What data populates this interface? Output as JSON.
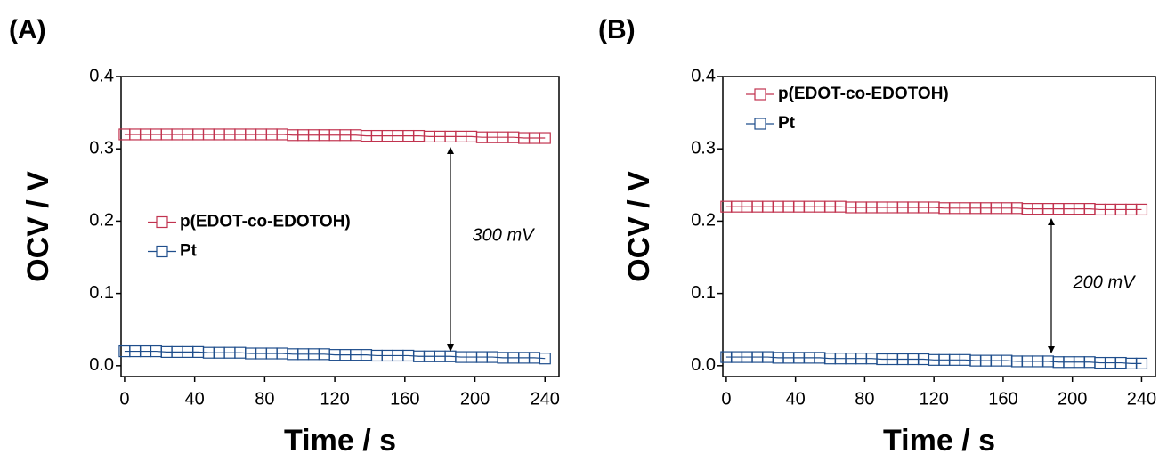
{
  "chart_data": [
    {
      "type": "line",
      "panel_label": "(A)",
      "x_label": "Time / s",
      "y_label": "OCV / V",
      "xlim": [
        -2,
        248
      ],
      "ylim": [
        -0.015,
        0.4
      ],
      "xticks": [
        0,
        40,
        80,
        120,
        160,
        200,
        240
      ],
      "yticks": [
        {
          "value": 0,
          "label": "0.0"
        },
        0.1,
        0.2,
        0.3,
        0.4
      ],
      "legend": "center left",
      "annotation": "300 mV",
      "x": [
        0,
        6,
        12,
        18,
        24,
        30,
        36,
        42,
        48,
        54,
        60,
        66,
        72,
        78,
        84,
        90,
        96,
        102,
        108,
        114,
        120,
        126,
        132,
        138,
        144,
        150,
        156,
        162,
        168,
        174,
        180,
        186,
        192,
        198,
        204,
        210,
        216,
        222,
        228,
        234,
        240
      ],
      "series": [
        {
          "name": "p(EDOT-co-EDOTOH)",
          "color": "#c1334f",
          "values": [
            0.32,
            0.32,
            0.32,
            0.32,
            0.32,
            0.32,
            0.32,
            0.32,
            0.32,
            0.32,
            0.32,
            0.32,
            0.32,
            0.32,
            0.32,
            0.32,
            0.319,
            0.319,
            0.319,
            0.319,
            0.319,
            0.319,
            0.319,
            0.318,
            0.318,
            0.318,
            0.318,
            0.318,
            0.318,
            0.317,
            0.317,
            0.317,
            0.317,
            0.317,
            0.316,
            0.316,
            0.316,
            0.316,
            0.315,
            0.315,
            0.315
          ]
        },
        {
          "name": "Pt",
          "color": "#1f4e8c",
          "values": [
            0.02,
            0.02,
            0.02,
            0.02,
            0.019,
            0.019,
            0.019,
            0.019,
            0.018,
            0.018,
            0.018,
            0.018,
            0.017,
            0.017,
            0.017,
            0.017,
            0.016,
            0.016,
            0.016,
            0.016,
            0.015,
            0.015,
            0.015,
            0.015,
            0.014,
            0.014,
            0.014,
            0.014,
            0.013,
            0.013,
            0.013,
            0.013,
            0.012,
            0.012,
            0.012,
            0.012,
            0.011,
            0.011,
            0.011,
            0.011,
            0.01
          ]
        }
      ]
    },
    {
      "type": "line",
      "panel_label": "(B)",
      "x_label": "Time / s",
      "y_label": "OCV / V",
      "xlim": [
        -2,
        248
      ],
      "ylim": [
        -0.015,
        0.4
      ],
      "xticks": [
        0,
        40,
        80,
        120,
        160,
        200,
        240
      ],
      "yticks": [
        {
          "value": 0,
          "label": "0.0"
        },
        0.1,
        0.2,
        0.3,
        0.4
      ],
      "legend": "upper left",
      "annotation": "200 mV",
      "x": [
        0,
        6,
        12,
        18,
        24,
        30,
        36,
        42,
        48,
        54,
        60,
        66,
        72,
        78,
        84,
        90,
        96,
        102,
        108,
        114,
        120,
        126,
        132,
        138,
        144,
        150,
        156,
        162,
        168,
        174,
        180,
        186,
        192,
        198,
        204,
        210,
        216,
        222,
        228,
        234,
        240
      ],
      "series": [
        {
          "name": "p(EDOT-co-EDOTOH)",
          "color": "#c1334f",
          "values": [
            0.22,
            0.22,
            0.22,
            0.22,
            0.22,
            0.22,
            0.22,
            0.22,
            0.22,
            0.22,
            0.22,
            0.22,
            0.219,
            0.219,
            0.219,
            0.219,
            0.219,
            0.219,
            0.219,
            0.219,
            0.219,
            0.218,
            0.218,
            0.218,
            0.218,
            0.218,
            0.218,
            0.218,
            0.218,
            0.217,
            0.217,
            0.217,
            0.217,
            0.217,
            0.217,
            0.217,
            0.216,
            0.216,
            0.216,
            0.216,
            0.216
          ]
        },
        {
          "name": "Pt",
          "color": "#1f4e8c",
          "values": [
            0.012,
            0.012,
            0.012,
            0.012,
            0.012,
            0.011,
            0.011,
            0.011,
            0.011,
            0.011,
            0.01,
            0.01,
            0.01,
            0.01,
            0.01,
            0.009,
            0.009,
            0.009,
            0.009,
            0.009,
            0.008,
            0.008,
            0.008,
            0.008,
            0.007,
            0.007,
            0.007,
            0.007,
            0.006,
            0.006,
            0.006,
            0.006,
            0.005,
            0.005,
            0.005,
            0.005,
            0.004,
            0.004,
            0.004,
            0.003,
            0.003
          ]
        }
      ]
    }
  ]
}
